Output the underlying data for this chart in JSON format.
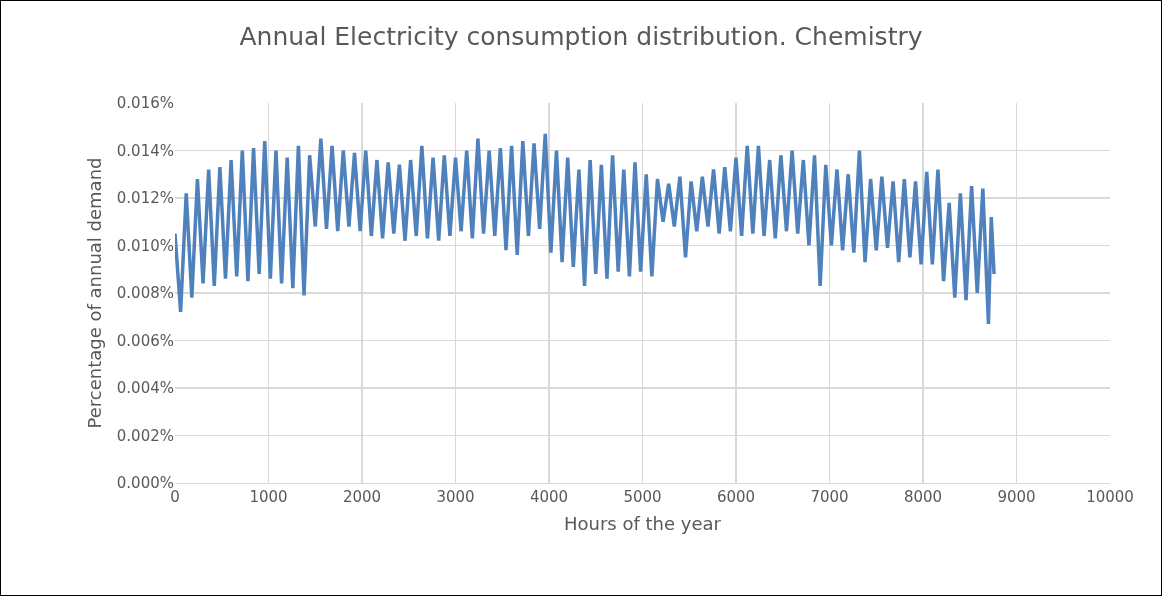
{
  "chart_data": {
    "type": "line",
    "title": "Annual Electricity consumption distribution. Chemistry",
    "xlabel": "Hours of the year",
    "ylabel": "Percentage of annual demand",
    "xlim": [
      0,
      10000
    ],
    "xticks": [
      0,
      1000,
      2000,
      3000,
      4000,
      5000,
      6000,
      7000,
      8000,
      9000,
      10000
    ],
    "ylim": [
      0,
      0.016
    ],
    "yticks": [
      {
        "value": 0,
        "label": "0.000%"
      },
      {
        "value": 0.002,
        "label": "0.002%"
      },
      {
        "value": 0.004,
        "label": "0.004%"
      },
      {
        "value": 0.006,
        "label": "0.006%"
      },
      {
        "value": 0.008,
        "label": "0.008%"
      },
      {
        "value": 0.01,
        "label": "0.010%"
      },
      {
        "value": 0.012,
        "label": "0.012%"
      },
      {
        "value": 0.014,
        "label": "0.014%"
      },
      {
        "value": 0.016,
        "label": "0.016%"
      }
    ],
    "grid": true,
    "series": [
      {
        "color": "#4f81bd",
        "x": [
          0,
          60,
          120,
          180,
          240,
          300,
          360,
          420,
          480,
          540,
          600,
          660,
          720,
          780,
          840,
          900,
          960,
          1020,
          1080,
          1140,
          1200,
          1260,
          1320,
          1380,
          1440,
          1500,
          1560,
          1620,
          1680,
          1740,
          1800,
          1860,
          1920,
          1980,
          2040,
          2100,
          2160,
          2220,
          2280,
          2340,
          2400,
          2460,
          2520,
          2580,
          2640,
          2700,
          2760,
          2820,
          2880,
          2940,
          3000,
          3060,
          3120,
          3180,
          3240,
          3300,
          3360,
          3420,
          3480,
          3540,
          3600,
          3660,
          3720,
          3780,
          3840,
          3900,
          3960,
          4020,
          4080,
          4140,
          4200,
          4260,
          4320,
          4380,
          4440,
          4500,
          4560,
          4620,
          4680,
          4740,
          4800,
          4860,
          4920,
          4980,
          5040,
          5100,
          5160,
          5220,
          5280,
          5340,
          5400,
          5460,
          5520,
          5580,
          5640,
          5700,
          5760,
          5820,
          5880,
          5940,
          6000,
          6060,
          6120,
          6180,
          6240,
          6300,
          6360,
          6420,
          6480,
          6540,
          6600,
          6660,
          6720,
          6780,
          6840,
          6900,
          6960,
          7020,
          7080,
          7140,
          7200,
          7260,
          7320,
          7380,
          7440,
          7500,
          7560,
          7620,
          7680,
          7740,
          7800,
          7860,
          7920,
          7980,
          8040,
          8100,
          8160,
          8220,
          8280,
          8340,
          8400,
          8460,
          8520,
          8580,
          8640,
          8700,
          8730,
          8760
        ],
        "values": [
          0.0105,
          0.0072,
          0.0122,
          0.0078,
          0.0128,
          0.0084,
          0.0132,
          0.0083,
          0.0133,
          0.0086,
          0.0136,
          0.0087,
          0.014,
          0.0085,
          0.0141,
          0.0088,
          0.0144,
          0.0086,
          0.014,
          0.0084,
          0.0137,
          0.0082,
          0.0142,
          0.0079,
          0.0138,
          0.0108,
          0.0145,
          0.0107,
          0.0142,
          0.0106,
          0.014,
          0.0108,
          0.0139,
          0.0106,
          0.014,
          0.0104,
          0.0136,
          0.0103,
          0.0135,
          0.0105,
          0.0134,
          0.0102,
          0.0136,
          0.0104,
          0.0142,
          0.0103,
          0.0137,
          0.0102,
          0.0138,
          0.0104,
          0.0137,
          0.0106,
          0.014,
          0.0103,
          0.0145,
          0.0105,
          0.014,
          0.0104,
          0.0141,
          0.0098,
          0.0142,
          0.0096,
          0.0144,
          0.0104,
          0.0143,
          0.0107,
          0.0147,
          0.0097,
          0.014,
          0.0093,
          0.0137,
          0.0091,
          0.0132,
          0.0083,
          0.0136,
          0.0088,
          0.0134,
          0.0086,
          0.0138,
          0.0089,
          0.0132,
          0.0087,
          0.0135,
          0.0089,
          0.013,
          0.0087,
          0.0128,
          0.011,
          0.0126,
          0.0108,
          0.0129,
          0.0095,
          0.0127,
          0.0106,
          0.0129,
          0.0108,
          0.0132,
          0.0105,
          0.0133,
          0.0106,
          0.0137,
          0.0104,
          0.0142,
          0.0105,
          0.0142,
          0.0104,
          0.0136,
          0.0103,
          0.0138,
          0.0106,
          0.014,
          0.0105,
          0.0136,
          0.01,
          0.0138,
          0.0083,
          0.0134,
          0.01,
          0.0132,
          0.0098,
          0.013,
          0.0097,
          0.014,
          0.0093,
          0.0128,
          0.0098,
          0.0129,
          0.0099,
          0.0127,
          0.0093,
          0.0128,
          0.0095,
          0.0127,
          0.0092,
          0.0131,
          0.0092,
          0.0132,
          0.0085,
          0.0118,
          0.0078,
          0.0122,
          0.0077,
          0.0125,
          0.008,
          0.0124,
          0.0067,
          0.0112,
          0.0088
        ]
      }
    ]
  }
}
